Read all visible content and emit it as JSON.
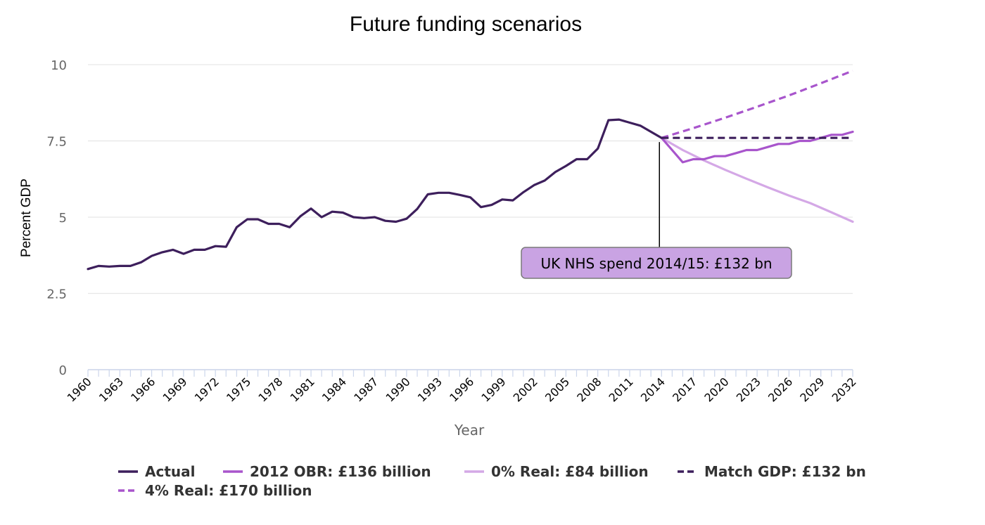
{
  "chart_data": {
    "type": "line",
    "title": "Future funding scenarios",
    "xlabel": "Year",
    "ylabel": "Percent GDP",
    "xlim": [
      1960,
      2032
    ],
    "ylim": [
      0,
      10
    ],
    "y_ticks": [
      "0",
      "2.5",
      "5",
      "7.5",
      "10"
    ],
    "y_tick_values": [
      0,
      2.5,
      5,
      7.5,
      10
    ],
    "x_ticks": [
      "1960",
      "1963",
      "1966",
      "1969",
      "1972",
      "1975",
      "1978",
      "1981",
      "1984",
      "1987",
      "1990",
      "1993",
      "1996",
      "1999",
      "2002",
      "2005",
      "2008",
      "2011",
      "2014",
      "2017",
      "2020",
      "2023",
      "2026",
      "2029",
      "2032"
    ],
    "grid": true,
    "legend_position": "bottom",
    "annotation": {
      "text": "UK NHS spend 2014/15: £132 bn",
      "x": 2014,
      "y": 7.6
    },
    "series": [
      {
        "name": "Actual",
        "color": "#3d1f5c",
        "dash": "solid",
        "x": [
          1960,
          1961,
          1962,
          1963,
          1964,
          1965,
          1966,
          1967,
          1968,
          1969,
          1970,
          1971,
          1972,
          1973,
          1974,
          1975,
          1976,
          1977,
          1978,
          1979,
          1980,
          1981,
          1982,
          1983,
          1984,
          1985,
          1986,
          1987,
          1988,
          1989,
          1990,
          1991,
          1992,
          1993,
          1994,
          1995,
          1996,
          1997,
          1998,
          1999,
          2000,
          2001,
          2002,
          2003,
          2004,
          2005,
          2006,
          2007,
          2008,
          2009,
          2010,
          2011,
          2012,
          2013,
          2014
        ],
        "values": [
          3.3,
          3.4,
          3.38,
          3.4,
          3.4,
          3.52,
          3.73,
          3.85,
          3.93,
          3.8,
          3.93,
          3.93,
          4.05,
          4.03,
          4.67,
          4.93,
          4.93,
          4.78,
          4.78,
          4.67,
          5.03,
          5.28,
          5.0,
          5.18,
          5.15,
          5.0,
          4.97,
          5.0,
          4.88,
          4.85,
          4.95,
          5.27,
          5.75,
          5.8,
          5.8,
          5.73,
          5.65,
          5.33,
          5.4,
          5.58,
          5.55,
          5.82,
          6.05,
          6.2,
          6.48,
          6.68,
          6.9,
          6.9,
          7.25,
          8.18,
          8.2,
          8.1,
          8.0,
          7.8,
          7.6
        ]
      },
      {
        "name": "2012 OBR: £136 billion",
        "color": "#a855cc",
        "dash": "solid",
        "x": [
          2014,
          2015,
          2016,
          2017,
          2018,
          2019,
          2020,
          2021,
          2022,
          2023,
          2024,
          2025,
          2026,
          2027,
          2028,
          2029,
          2030,
          2031,
          2032
        ],
        "values": [
          7.6,
          7.2,
          6.8,
          6.9,
          6.9,
          7.0,
          7.0,
          7.1,
          7.2,
          7.2,
          7.3,
          7.4,
          7.4,
          7.5,
          7.5,
          7.6,
          7.7,
          7.7,
          7.8
        ]
      },
      {
        "name": "0% Real: £84 billion",
        "color": "#d4a8e6",
        "dash": "solid",
        "x": [
          2014,
          2016,
          2018,
          2020,
          2022,
          2024,
          2026,
          2028,
          2030,
          2032
        ],
        "values": [
          7.6,
          7.2,
          6.86,
          6.55,
          6.26,
          5.98,
          5.71,
          5.46,
          5.16,
          4.85
        ]
      },
      {
        "name": "Match GDP: £132 bn",
        "color": "#3d1f5c",
        "dash": "dashed",
        "x": [
          2014,
          2032
        ],
        "values": [
          7.6,
          7.6
        ]
      },
      {
        "name": "4% Real: £170 billion",
        "color": "#a855cc",
        "dash": "dashed",
        "x": [
          2014,
          2017,
          2020,
          2023,
          2026,
          2029,
          2032
        ],
        "values": [
          7.6,
          7.92,
          8.26,
          8.62,
          8.99,
          9.39,
          9.8
        ]
      }
    ]
  }
}
